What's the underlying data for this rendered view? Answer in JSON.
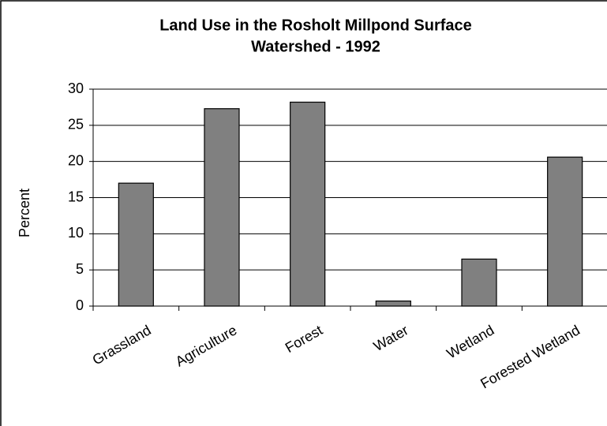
{
  "chart_data": {
    "type": "bar",
    "title": [
      "Land Use in the Rosholt Millpond Surface",
      "Watershed - 1992"
    ],
    "y_label": "Percent",
    "categories": [
      "Grassland",
      "Agriculture",
      "Forest",
      "Water",
      "Wetland",
      "Forested Wetland"
    ],
    "values": [
      17,
      27.3,
      28.2,
      0.7,
      6.5,
      20.6
    ],
    "color": "#808080",
    "ylim": [
      0,
      30
    ],
    "yticks": [
      0,
      5,
      10,
      15,
      20,
      25,
      30
    ],
    "grid": true
  }
}
